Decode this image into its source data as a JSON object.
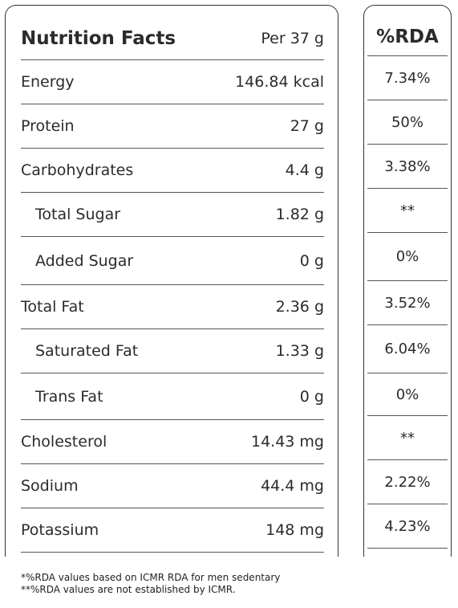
{
  "table": {
    "title": "Nutrition Facts",
    "serving": "Per 37 g",
    "rda_header": "%RDA",
    "rows": [
      {
        "label": "Energy",
        "value": "146.84 kcal",
        "rda": "7.34%"
      },
      {
        "label": "Protein",
        "value": "27 g",
        "rda": "50%"
      },
      {
        "label": "Carbohydrates",
        "value": "4.4 g",
        "rda": "3.38%"
      },
      {
        "label": "Total Sugar",
        "value": "1.82 g",
        "rda": "**"
      },
      {
        "label": "Added Sugar",
        "value": "0 g",
        "rda": "0%"
      },
      {
        "label": "Total Fat",
        "value": "2.36 g",
        "rda": "3.52%"
      },
      {
        "label": "Saturated Fat",
        "value": "1.33 g",
        "rda": "6.04%"
      },
      {
        "label": "Trans Fat",
        "value": "0 g",
        "rda": "0%"
      },
      {
        "label": "Cholesterol",
        "value": "14.43 mg",
        "rda": "**"
      },
      {
        "label": "Sodium",
        "value": "44.4 mg",
        "rda": "2.22%"
      },
      {
        "label": "Potassium",
        "value": "148 mg",
        "rda": "4.23%"
      }
    ]
  },
  "footnotes": [
    "*%RDA values based on ICMR RDA for men sedentary",
    "**%RDA values are not established by ICMR."
  ]
}
